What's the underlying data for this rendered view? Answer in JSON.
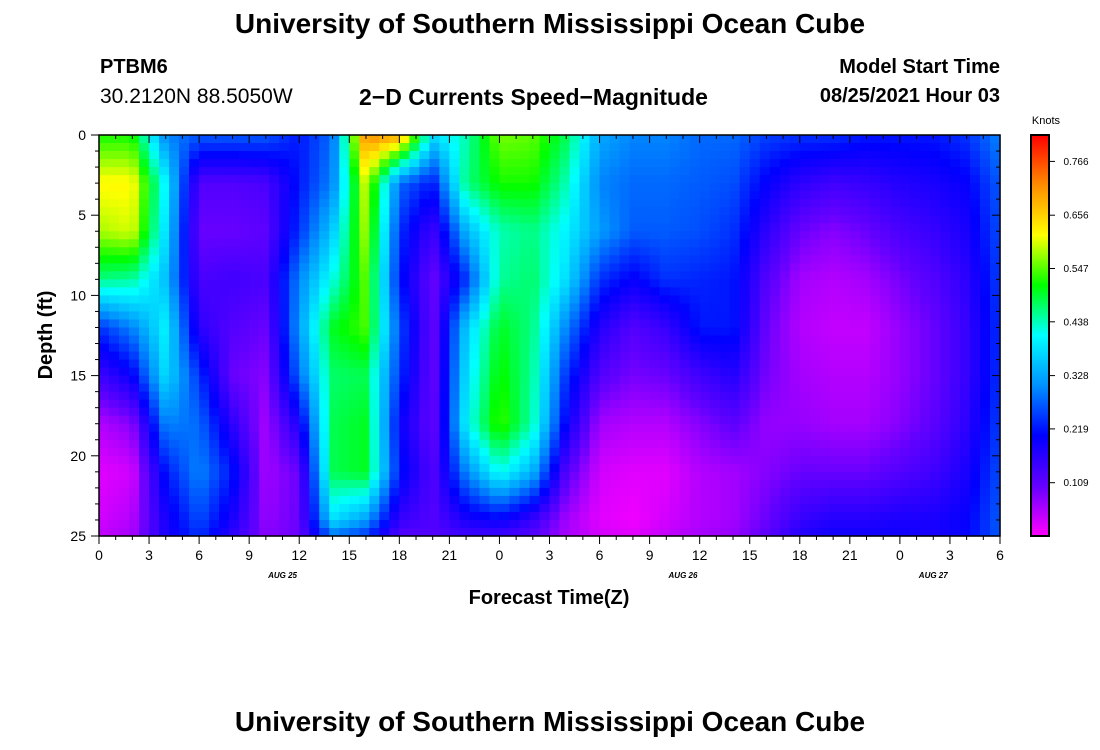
{
  "header": {
    "title_top": "University of Southern Mississippi Ocean Cube",
    "title_bottom": "University of Southern Mississippi Ocean Cube",
    "station_id": "PTBM6",
    "station_coords": "30.2120N  88.5050W",
    "plot_title": "2−D Currents Speed−Magnitude",
    "model_start_label": "Model Start Time",
    "model_start_value": "08/25/2021 Hour 03"
  },
  "chart_data": {
    "type": "heatmap",
    "title": "2−D Currents Speed−Magnitude",
    "xlabel": "Forecast Time(Z)",
    "ylabel": "Depth (ft)",
    "x_tick_labels": [
      "0",
      "3",
      "6",
      "9",
      "12",
      "15",
      "18",
      "21",
      "0",
      "3",
      "6",
      "9",
      "12",
      "15",
      "18",
      "21",
      "0",
      "3",
      "6"
    ],
    "date_labels": [
      {
        "text": "AUG  25",
        "tick": 11
      },
      {
        "text": "AUG  26",
        "tick": 35
      },
      {
        "text": "AUG  27",
        "tick": 50
      }
    ],
    "xlim_hours": [
      0,
      54
    ],
    "y_tick_labels": [
      "0",
      "5",
      "10",
      "15",
      "20",
      "25"
    ],
    "ylim_depth_ft": [
      0,
      25
    ],
    "colorbar": {
      "unit_label": "Knots",
      "tick_labels": [
        "0.766",
        "0.656",
        "0.547",
        "0.438",
        "0.328",
        "0.219",
        "0.109"
      ],
      "range": [
        0.0,
        0.82
      ],
      "colormap": [
        "#ff00ff",
        "#6400ff",
        "#0000ff",
        "#0090ff",
        "#00ffff",
        "#00ff00",
        "#ffff00",
        "#ff8c00",
        "#ff0000"
      ]
    },
    "grid_hours": [
      0,
      2,
      4,
      6,
      8,
      10,
      12,
      14,
      16,
      18,
      20,
      22,
      24,
      26,
      28,
      30,
      32,
      34,
      36,
      38,
      40,
      42,
      44,
      46,
      48,
      50,
      52,
      54
    ],
    "grid_depths_ft": [
      0,
      3,
      6,
      9,
      12,
      15,
      18,
      21,
      24,
      25
    ],
    "values_knots": [
      [
        0.52,
        0.52,
        0.3,
        0.27,
        0.27,
        0.27,
        0.22,
        0.28,
        0.72,
        0.7,
        0.38,
        0.44,
        0.56,
        0.55,
        0.48,
        0.33,
        0.3,
        0.3,
        0.28,
        0.28,
        0.25,
        0.24,
        0.24,
        0.22,
        0.22,
        0.22,
        0.24,
        0.3
      ],
      [
        0.62,
        0.62,
        0.4,
        0.12,
        0.12,
        0.13,
        0.22,
        0.3,
        0.6,
        0.28,
        0.22,
        0.46,
        0.52,
        0.52,
        0.44,
        0.3,
        0.28,
        0.28,
        0.27,
        0.26,
        0.2,
        0.16,
        0.14,
        0.15,
        0.17,
        0.18,
        0.2,
        0.27
      ],
      [
        0.58,
        0.6,
        0.38,
        0.1,
        0.1,
        0.11,
        0.24,
        0.36,
        0.58,
        0.24,
        0.14,
        0.34,
        0.44,
        0.46,
        0.4,
        0.32,
        0.27,
        0.27,
        0.26,
        0.24,
        0.16,
        0.1,
        0.08,
        0.1,
        0.13,
        0.15,
        0.18,
        0.26
      ],
      [
        0.46,
        0.45,
        0.35,
        0.13,
        0.14,
        0.13,
        0.3,
        0.42,
        0.55,
        0.22,
        0.1,
        0.24,
        0.45,
        0.47,
        0.38,
        0.24,
        0.2,
        0.24,
        0.23,
        0.22,
        0.12,
        0.06,
        0.05,
        0.06,
        0.09,
        0.12,
        0.16,
        0.25
      ],
      [
        0.24,
        0.3,
        0.4,
        0.16,
        0.12,
        0.1,
        0.32,
        0.5,
        0.54,
        0.26,
        0.1,
        0.36,
        0.5,
        0.46,
        0.3,
        0.17,
        0.12,
        0.15,
        0.22,
        0.22,
        0.1,
        0.05,
        0.04,
        0.04,
        0.07,
        0.1,
        0.15,
        0.24
      ],
      [
        0.14,
        0.2,
        0.38,
        0.24,
        0.1,
        0.08,
        0.28,
        0.47,
        0.48,
        0.24,
        0.1,
        0.38,
        0.52,
        0.45,
        0.24,
        0.12,
        0.09,
        0.1,
        0.14,
        0.17,
        0.09,
        0.06,
        0.05,
        0.05,
        0.07,
        0.1,
        0.15,
        0.24
      ],
      [
        0.05,
        0.08,
        0.3,
        0.28,
        0.16,
        0.06,
        0.18,
        0.48,
        0.5,
        0.2,
        0.1,
        0.4,
        0.54,
        0.44,
        0.2,
        0.06,
        0.05,
        0.05,
        0.08,
        0.11,
        0.07,
        0.07,
        0.06,
        0.06,
        0.08,
        0.11,
        0.16,
        0.25
      ],
      [
        0.02,
        0.03,
        0.22,
        0.3,
        0.22,
        0.06,
        0.1,
        0.48,
        0.5,
        0.22,
        0.12,
        0.3,
        0.42,
        0.34,
        0.12,
        0.03,
        0.02,
        0.02,
        0.05,
        0.06,
        0.08,
        0.1,
        0.1,
        0.1,
        0.12,
        0.14,
        0.18,
        0.26
      ],
      [
        0.03,
        0.05,
        0.18,
        0.26,
        0.18,
        0.07,
        0.1,
        0.38,
        0.32,
        0.15,
        0.12,
        0.18,
        0.2,
        0.15,
        0.06,
        0.02,
        0.01,
        0.03,
        0.05,
        0.06,
        0.1,
        0.15,
        0.17,
        0.17,
        0.18,
        0.18,
        0.2,
        0.27
      ],
      [
        0.04,
        0.06,
        0.18,
        0.24,
        0.16,
        0.08,
        0.1,
        0.28,
        0.24,
        0.12,
        0.12,
        0.14,
        0.14,
        0.12,
        0.06,
        0.03,
        0.02,
        0.04,
        0.06,
        0.07,
        0.11,
        0.17,
        0.19,
        0.19,
        0.19,
        0.18,
        0.2,
        0.27
      ]
    ]
  }
}
